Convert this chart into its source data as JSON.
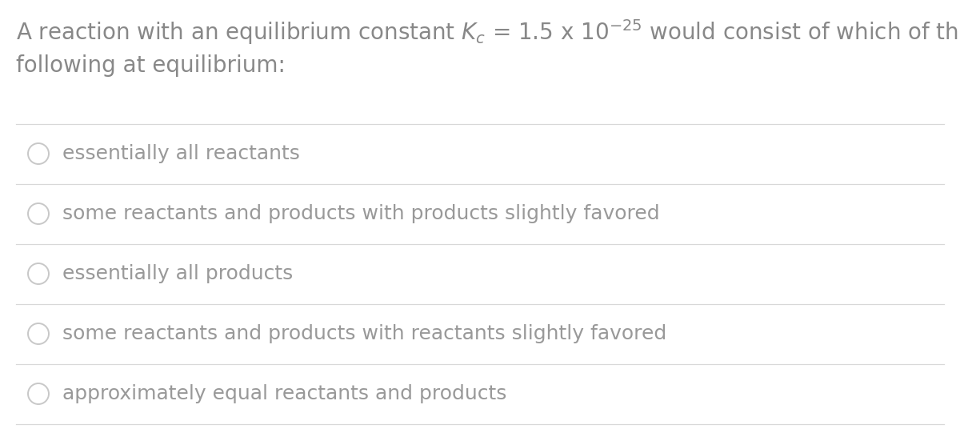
{
  "background_color": "#ffffff",
  "options": [
    "essentially all reactants",
    "some reactants and products with products slightly favored",
    "essentially all products",
    "some reactants and products with reactants slightly favored",
    "approximately equal reactants and products"
  ],
  "separator_color": "#d8d8d8",
  "circle_color": "#c8c8c8",
  "font_size_title": 20,
  "font_size_options": 18,
  "title_text_color": "#888888",
  "option_text_color": "#999999"
}
